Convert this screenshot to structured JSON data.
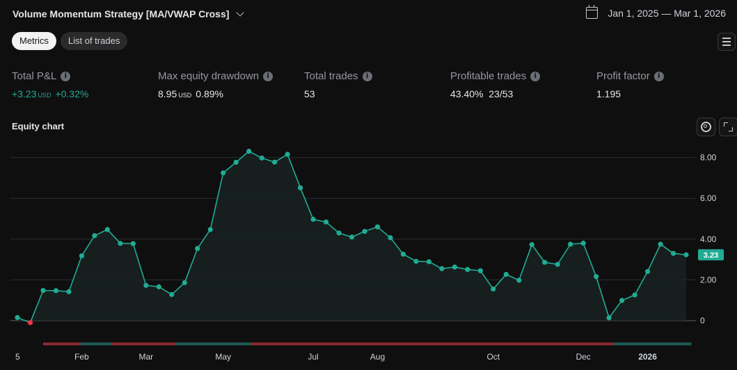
{
  "header": {
    "strategy_name": "Volume Momentum Strategy [MA/VWAP Cross]",
    "date_range": "Jan 1, 2025 — Mar 1, 2026"
  },
  "tabs": [
    {
      "label": "Metrics",
      "active": true
    },
    {
      "label": "List of trades",
      "active": false
    }
  ],
  "metrics": {
    "total_pnl": {
      "label": "Total P&L",
      "value": "+3.23",
      "unit": "USD",
      "pct": "+0.32%"
    },
    "max_drawdown": {
      "label": "Max equity drawdown",
      "value": "8.95",
      "unit": "USD",
      "pct": "0.89%"
    },
    "total_trades": {
      "label": "Total trades",
      "value": "53"
    },
    "profitable_trades": {
      "label": "Profitable trades",
      "value": "43.40%",
      "ratio": "23/53"
    },
    "profit_factor": {
      "label": "Profit factor",
      "value": "1.195"
    }
  },
  "equity": {
    "title": "Equity chart",
    "last_value_label": "3.23"
  },
  "colors": {
    "background": "#0f0f0f",
    "line": "#22ab94",
    "negative_point": "#f23645",
    "up_band": "#1f5c54",
    "down_band": "#8e2a31",
    "grid": "#2a2e39"
  },
  "chart_data": {
    "type": "line",
    "title": "Equity chart",
    "xlabel": "",
    "ylabel": "",
    "ylim": [
      0,
      8
    ],
    "y_ticks": [
      "0",
      "2.00",
      "4.00",
      "6.00",
      "8.00"
    ],
    "x_ticks": [
      {
        "label": "5",
        "x": 0
      },
      {
        "label": "Feb",
        "x": 5
      },
      {
        "label": "Mar",
        "x": 10
      },
      {
        "label": "May",
        "x": 16
      },
      {
        "label": "Jul",
        "x": 23
      },
      {
        "label": "Aug",
        "x": 28
      },
      {
        "label": "Oct",
        "x": 37
      },
      {
        "label": "Dec",
        "x": 44
      },
      {
        "label": "2026",
        "x": 49
      }
    ],
    "x_range": [
      0,
      52
    ],
    "series": [
      {
        "values": [
          0.15,
          -0.1,
          1.48,
          1.47,
          1.42,
          3.18,
          4.17,
          4.47,
          3.79,
          3.78,
          1.73,
          1.66,
          1.28,
          1.86,
          3.54,
          4.47,
          7.25,
          7.77,
          8.31,
          7.98,
          7.78,
          8.16,
          6.52,
          4.97,
          4.84,
          4.3,
          4.1,
          4.38,
          4.6,
          4.07,
          3.26,
          2.91,
          2.89,
          2.55,
          2.63,
          2.51,
          2.45,
          1.55,
          2.27,
          1.98,
          3.73,
          2.86,
          2.76,
          3.75,
          3.8,
          2.16,
          0.14,
          0.99,
          1.26,
          2.41,
          3.75,
          3.3,
          3.23
        ]
      }
    ],
    "trade_bands": [
      {
        "from": 2,
        "to": 4.9,
        "result": "loss"
      },
      {
        "from": 4.9,
        "to": 7.3,
        "result": "win"
      },
      {
        "from": 7.3,
        "to": 12.3,
        "result": "loss"
      },
      {
        "from": 12.3,
        "to": 18.2,
        "result": "win"
      },
      {
        "from": 18.2,
        "to": 46.4,
        "result": "loss"
      },
      {
        "from": 46.4,
        "to": 52.4,
        "result": "win"
      }
    ],
    "grid": true,
    "last_value": 3.23
  }
}
